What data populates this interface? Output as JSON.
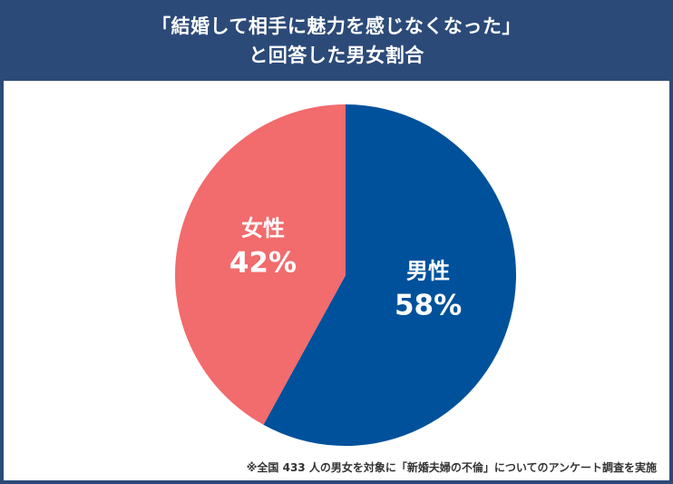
{
  "title": {
    "line1": "「結婚して相手に魅力を感じなくなった」",
    "line2": "と回答した男女割合"
  },
  "footnote": "※全国 433 人の男女を対象に「新婚夫婦の不倫」についてのアンケート調査を実施",
  "colors": {
    "header_bg": "#2b4a78",
    "male": "#00519b",
    "female": "#f26b6d",
    "label": "#ffffff"
  },
  "chart_data": {
    "type": "pie",
    "title": "「結婚して相手に魅力を感じなくなった」と回答した男女割合",
    "slices": [
      {
        "label": "男性",
        "value": 58,
        "display": "58%"
      },
      {
        "label": "女性",
        "value": 42,
        "display": "42%"
      }
    ],
    "start_angle": "12 o'clock, clockwise",
    "legend": "none (labels on slices)"
  }
}
